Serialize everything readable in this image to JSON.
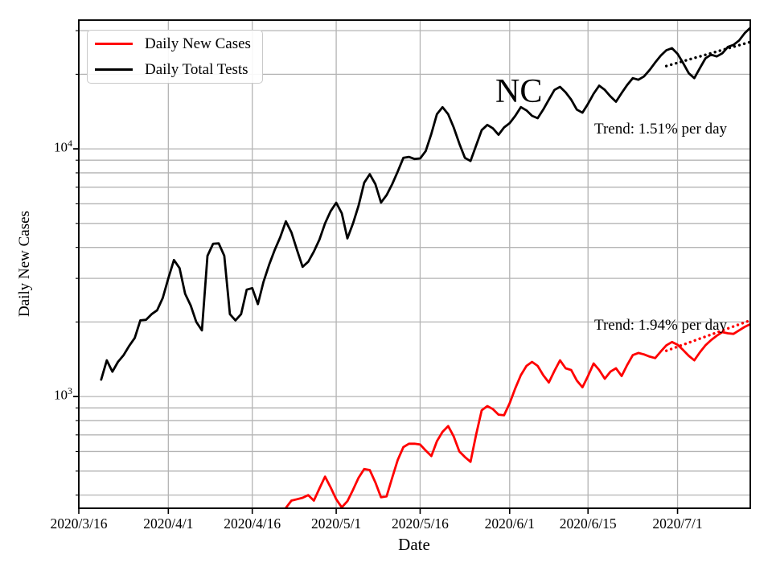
{
  "chart_data": {
    "type": "line",
    "title": "",
    "xlabel": "Date",
    "ylabel": "Daily New Cases",
    "yscale": "log",
    "grid": true,
    "x_unit": "days since 2020/3/16",
    "xlim": [
      0,
      120
    ],
    "ylim": [
      354,
      33100
    ],
    "xticks": [
      {
        "day": 0,
        "label": "2020/3/16"
      },
      {
        "day": 16,
        "label": "2020/4/1"
      },
      {
        "day": 31,
        "label": "2020/4/16"
      },
      {
        "day": 46,
        "label": "2020/5/1"
      },
      {
        "day": 61,
        "label": "2020/5/16"
      },
      {
        "day": 77,
        "label": "2020/6/1"
      },
      {
        "day": 91,
        "label": "2020/6/15"
      },
      {
        "day": 107,
        "label": "2020/7/1"
      }
    ],
    "ytick_labels": [
      {
        "value": 10000,
        "mantissa": "10",
        "exponent": "4"
      },
      {
        "value": 1000,
        "mantissa": "10",
        "exponent": "3"
      }
    ],
    "grid_y_values": [
      400,
      500,
      600,
      700,
      800,
      900,
      1000,
      2000,
      3000,
      4000,
      5000,
      6000,
      7000,
      8000,
      9000,
      10000,
      20000,
      30000
    ],
    "colors": {
      "cases": "#ff0000",
      "tests": "#000000",
      "grid": "#b4b4b4",
      "spine": "#000000"
    },
    "legend": {
      "position": "upper left",
      "items": [
        {
          "label": "Daily New Cases",
          "color": "#ff0000"
        },
        {
          "label": "Daily Total Tests",
          "color": "#000000"
        }
      ]
    },
    "annotations": [
      {
        "text": "NC"
      },
      {
        "text": "Trend: 1.51% per day"
      },
      {
        "text": "Trend: 1.94% per day"
      }
    ],
    "series": [
      {
        "name": "Daily Total Tests",
        "color": "#000000",
        "style": "solid",
        "points": [
          [
            4,
            1170
          ],
          [
            5,
            1400
          ],
          [
            6,
            1260
          ],
          [
            7,
            1380
          ],
          [
            8,
            1470
          ],
          [
            9,
            1600
          ],
          [
            10,
            1725
          ],
          [
            11,
            2030
          ],
          [
            12,
            2040
          ],
          [
            13,
            2150
          ],
          [
            14,
            2230
          ],
          [
            15,
            2500
          ],
          [
            16,
            3000
          ],
          [
            17,
            3560
          ],
          [
            18,
            3300
          ],
          [
            19,
            2600
          ],
          [
            20,
            2330
          ],
          [
            21,
            2000
          ],
          [
            22,
            1850
          ],
          [
            23,
            3700
          ],
          [
            24,
            4140
          ],
          [
            25,
            4150
          ],
          [
            26,
            3700
          ],
          [
            27,
            2150
          ],
          [
            28,
            2030
          ],
          [
            29,
            2150
          ],
          [
            30,
            2700
          ],
          [
            31,
            2740
          ],
          [
            32,
            2360
          ],
          [
            33,
            2900
          ],
          [
            34,
            3400
          ],
          [
            35,
            3900
          ],
          [
            36,
            4400
          ],
          [
            37,
            5100
          ],
          [
            38,
            4600
          ],
          [
            39,
            3900
          ],
          [
            40,
            3340
          ],
          [
            41,
            3500
          ],
          [
            42,
            3850
          ],
          [
            43,
            4300
          ],
          [
            44,
            5000
          ],
          [
            45,
            5600
          ],
          [
            46,
            6060
          ],
          [
            47,
            5500
          ],
          [
            48,
            4350
          ],
          [
            49,
            5000
          ],
          [
            50,
            5900
          ],
          [
            51,
            7300
          ],
          [
            52,
            7900
          ],
          [
            53,
            7200
          ],
          [
            54,
            6070
          ],
          [
            55,
            6500
          ],
          [
            56,
            7200
          ],
          [
            57,
            8100
          ],
          [
            58,
            9200
          ],
          [
            59,
            9280
          ],
          [
            60,
            9100
          ],
          [
            61,
            9150
          ],
          [
            62,
            9800
          ],
          [
            63,
            11500
          ],
          [
            64,
            13800
          ],
          [
            65,
            14730
          ],
          [
            66,
            13800
          ],
          [
            67,
            12200
          ],
          [
            68,
            10500
          ],
          [
            69,
            9200
          ],
          [
            70,
            8930
          ],
          [
            71,
            10300
          ],
          [
            72,
            11900
          ],
          [
            73,
            12500
          ],
          [
            74,
            12100
          ],
          [
            75,
            11400
          ],
          [
            76,
            12200
          ],
          [
            77,
            12700
          ],
          [
            78,
            13600
          ],
          [
            79,
            14740
          ],
          [
            80,
            14300
          ],
          [
            81,
            13600
          ],
          [
            82,
            13300
          ],
          [
            83,
            14400
          ],
          [
            84,
            15800
          ],
          [
            85,
            17300
          ],
          [
            86,
            17800
          ],
          [
            87,
            16900
          ],
          [
            88,
            15800
          ],
          [
            89,
            14400
          ],
          [
            90,
            14000
          ],
          [
            91,
            15200
          ],
          [
            92,
            16700
          ],
          [
            93,
            18000
          ],
          [
            94,
            17300
          ],
          [
            95,
            16300
          ],
          [
            96,
            15500
          ],
          [
            97,
            16800
          ],
          [
            98,
            18100
          ],
          [
            99,
            19300
          ],
          [
            100,
            19000
          ],
          [
            101,
            19600
          ],
          [
            102,
            20800
          ],
          [
            103,
            22300
          ],
          [
            104,
            23800
          ],
          [
            105,
            25000
          ],
          [
            106,
            25500
          ],
          [
            107,
            24200
          ],
          [
            108,
            22200
          ],
          [
            109,
            20200
          ],
          [
            110,
            19300
          ],
          [
            111,
            21200
          ],
          [
            112,
            23200
          ],
          [
            113,
            24000
          ],
          [
            114,
            23600
          ],
          [
            115,
            24300
          ],
          [
            116,
            25800
          ],
          [
            117,
            26300
          ],
          [
            118,
            27400
          ],
          [
            119,
            29300
          ],
          [
            120,
            30800
          ]
        ]
      },
      {
        "name": "Daily New Cases",
        "color": "#ff0000",
        "style": "solid",
        "points": [
          [
            37,
            355
          ],
          [
            38,
            380
          ],
          [
            39,
            385
          ],
          [
            40,
            390
          ],
          [
            41,
            400
          ],
          [
            42,
            380
          ],
          [
            43,
            425
          ],
          [
            44,
            475
          ],
          [
            45,
            430
          ],
          [
            46,
            385
          ],
          [
            47,
            357
          ],
          [
            48,
            378
          ],
          [
            49,
            420
          ],
          [
            50,
            470
          ],
          [
            51,
            510
          ],
          [
            52,
            505
          ],
          [
            53,
            450
          ],
          [
            54,
            392
          ],
          [
            55,
            395
          ],
          [
            56,
            470
          ],
          [
            57,
            555
          ],
          [
            58,
            625
          ],
          [
            59,
            645
          ],
          [
            60,
            645
          ],
          [
            61,
            640
          ],
          [
            62,
            605
          ],
          [
            63,
            575
          ],
          [
            64,
            660
          ],
          [
            65,
            720
          ],
          [
            66,
            760
          ],
          [
            67,
            690
          ],
          [
            68,
            600
          ],
          [
            69,
            570
          ],
          [
            70,
            545
          ],
          [
            71,
            700
          ],
          [
            72,
            880
          ],
          [
            73,
            915
          ],
          [
            74,
            890
          ],
          [
            75,
            845
          ],
          [
            76,
            840
          ],
          [
            77,
            940
          ],
          [
            78,
            1080
          ],
          [
            79,
            1220
          ],
          [
            80,
            1330
          ],
          [
            81,
            1380
          ],
          [
            82,
            1330
          ],
          [
            83,
            1220
          ],
          [
            84,
            1140
          ],
          [
            85,
            1270
          ],
          [
            86,
            1400
          ],
          [
            87,
            1300
          ],
          [
            88,
            1280
          ],
          [
            89,
            1160
          ],
          [
            90,
            1090
          ],
          [
            91,
            1210
          ],
          [
            92,
            1360
          ],
          [
            93,
            1280
          ],
          [
            94,
            1180
          ],
          [
            95,
            1260
          ],
          [
            96,
            1300
          ],
          [
            97,
            1210
          ],
          [
            98,
            1340
          ],
          [
            99,
            1470
          ],
          [
            100,
            1500
          ],
          [
            101,
            1480
          ],
          [
            102,
            1450
          ],
          [
            103,
            1430
          ],
          [
            104,
            1520
          ],
          [
            105,
            1610
          ],
          [
            106,
            1660
          ],
          [
            107,
            1620
          ],
          [
            108,
            1540
          ],
          [
            109,
            1460
          ],
          [
            110,
            1400
          ],
          [
            111,
            1510
          ],
          [
            112,
            1610
          ],
          [
            113,
            1690
          ],
          [
            114,
            1760
          ],
          [
            115,
            1820
          ],
          [
            116,
            1800
          ],
          [
            117,
            1790
          ],
          [
            118,
            1850
          ],
          [
            119,
            1910
          ],
          [
            120,
            1960
          ]
        ]
      },
      {
        "name": "Tests trend 1.51% per day",
        "color": "#000000",
        "style": "dotted",
        "points": [
          [
            105,
            21600
          ],
          [
            120,
            27000
          ]
        ]
      },
      {
        "name": "Cases trend 1.94% per day",
        "color": "#ff0000",
        "style": "dotted",
        "points": [
          [
            105,
            1530
          ],
          [
            120,
            2030
          ]
        ]
      }
    ]
  }
}
